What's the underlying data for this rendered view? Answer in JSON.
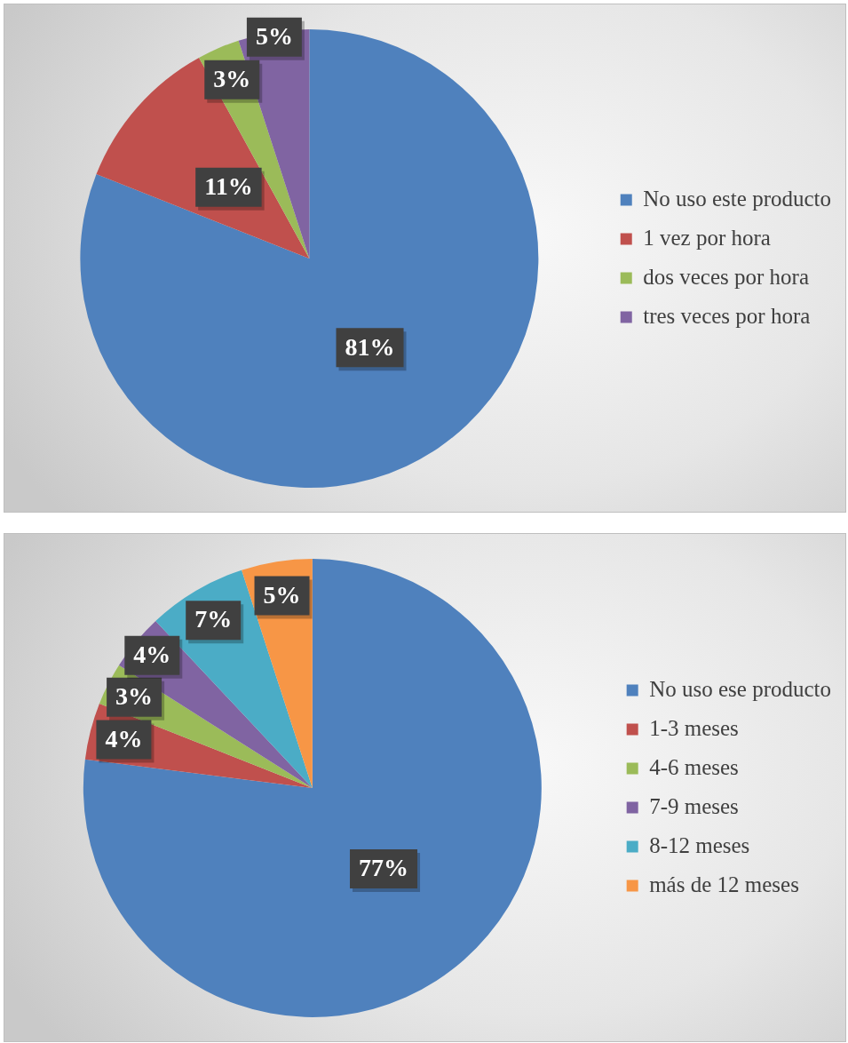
{
  "chart_data": [
    {
      "type": "pie",
      "categories": [
        "No uso este producto",
        "1 vez por hora",
        "dos veces por hora",
        "tres veces por hora"
      ],
      "values": [
        81,
        11,
        3,
        5
      ],
      "colors": [
        "#4f81bd",
        "#c0504d",
        "#9bbb59",
        "#8064a2"
      ],
      "value_labels": [
        "81%",
        "11%",
        "3%",
        "5%"
      ],
      "legend": "right"
    },
    {
      "type": "pie",
      "categories": [
        "No uso ese producto",
        "1-3 meses",
        "4-6 meses",
        "7-9 meses",
        "8-12 meses",
        "más de 12 meses"
      ],
      "values": [
        77,
        4,
        3,
        4,
        7,
        5
      ],
      "colors": [
        "#4f81bd",
        "#c0504d",
        "#9bbb59",
        "#8064a2",
        "#4bacc6",
        "#f79646"
      ],
      "value_labels": [
        "77%",
        "4%",
        "3%",
        "4%",
        "7%",
        "5%"
      ],
      "legend": "right"
    }
  ]
}
